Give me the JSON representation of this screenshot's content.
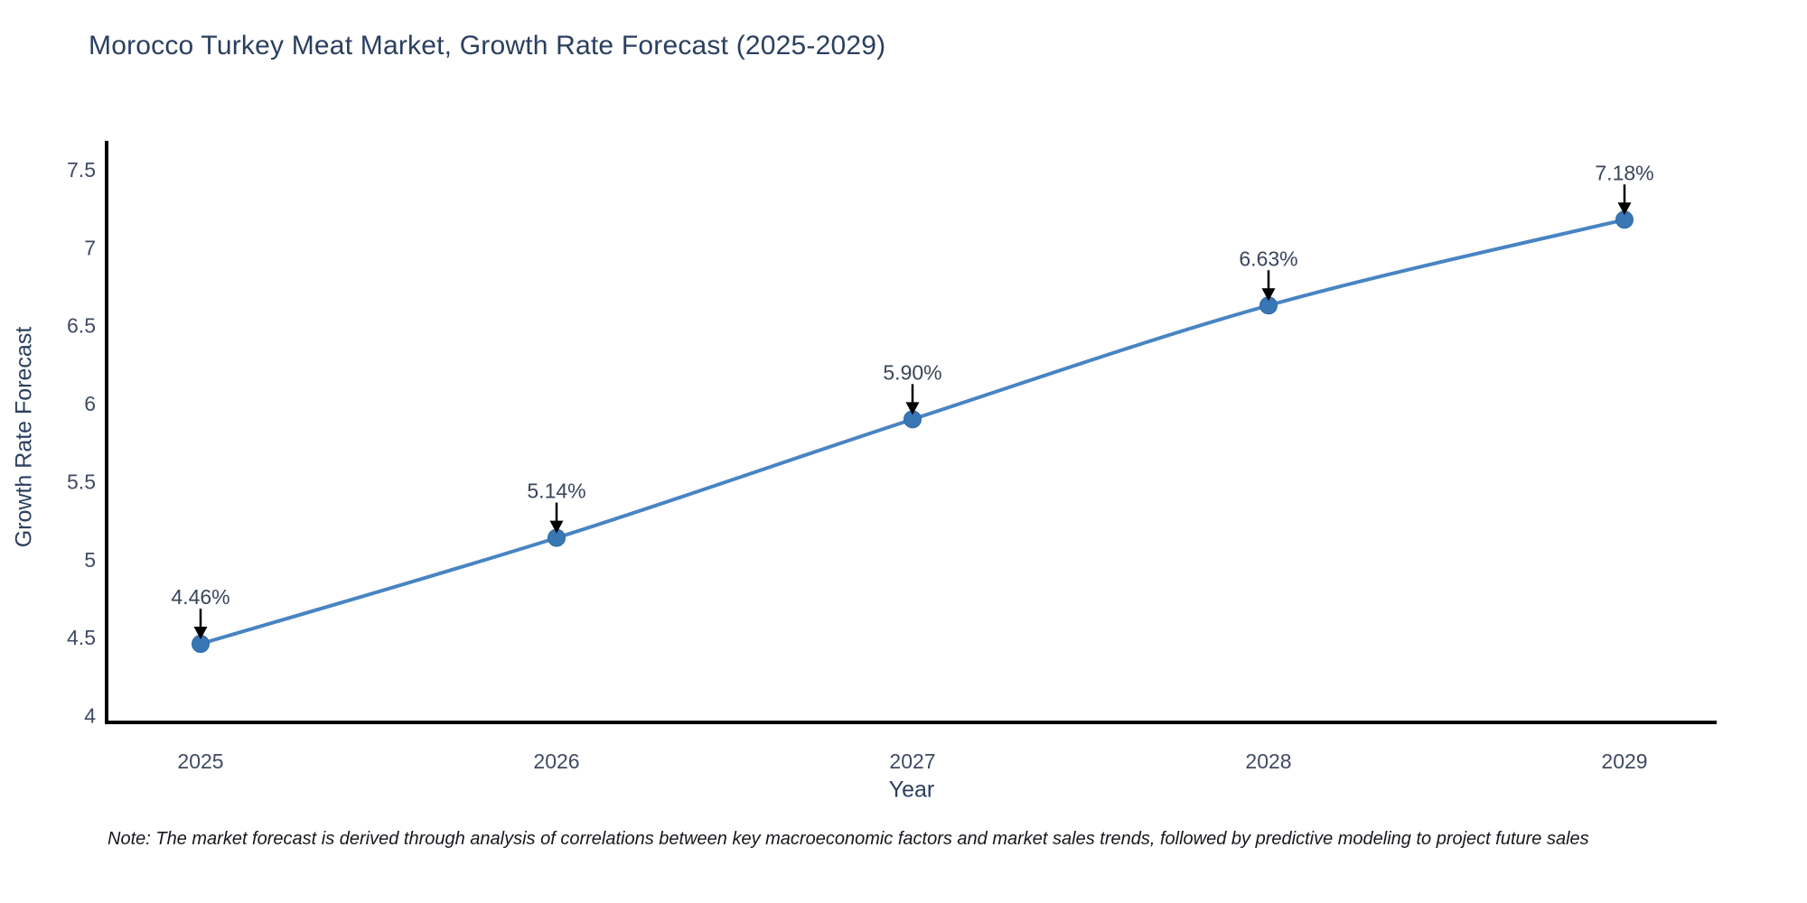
{
  "chart_data": {
    "type": "line",
    "title": "Morocco Turkey Meat Market, Growth Rate Forecast (2025-2029)",
    "xlabel": "Year",
    "ylabel": "Growth Rate Forecast",
    "x": [
      "2025",
      "2026",
      "2027",
      "2028",
      "2029"
    ],
    "values": [
      4.46,
      5.14,
      5.9,
      6.63,
      7.18
    ],
    "point_labels": [
      "4.46%",
      "5.14%",
      "5.90%",
      "6.63%",
      "7.18%"
    ],
    "yticks": [
      4,
      4.5,
      5,
      5.5,
      6,
      6.5,
      7,
      7.5
    ],
    "ytick_labels": [
      "4",
      "4.5",
      "5",
      "5.5",
      "6",
      "6.5",
      "7",
      "7.5"
    ],
    "ylim": [
      4,
      7.5
    ],
    "grid": false,
    "legend": "none",
    "line_shape": "spline",
    "annotation_style": "label-with-down-arrow",
    "colors": {
      "line": "#4884c2",
      "marker": "#3876b4",
      "marker_edge": "#2f6aa5",
      "axis_spine": "#000000",
      "arrow": "#000000",
      "title_text": "#2a3f5f",
      "tick_text": "#3f4b63",
      "background": "#ffffff"
    }
  },
  "note": {
    "text": "Note: The market forecast is derived through analysis of correlations between key macroeconomic factors and market sales trends, followed by predictive modeling to project future sales"
  }
}
